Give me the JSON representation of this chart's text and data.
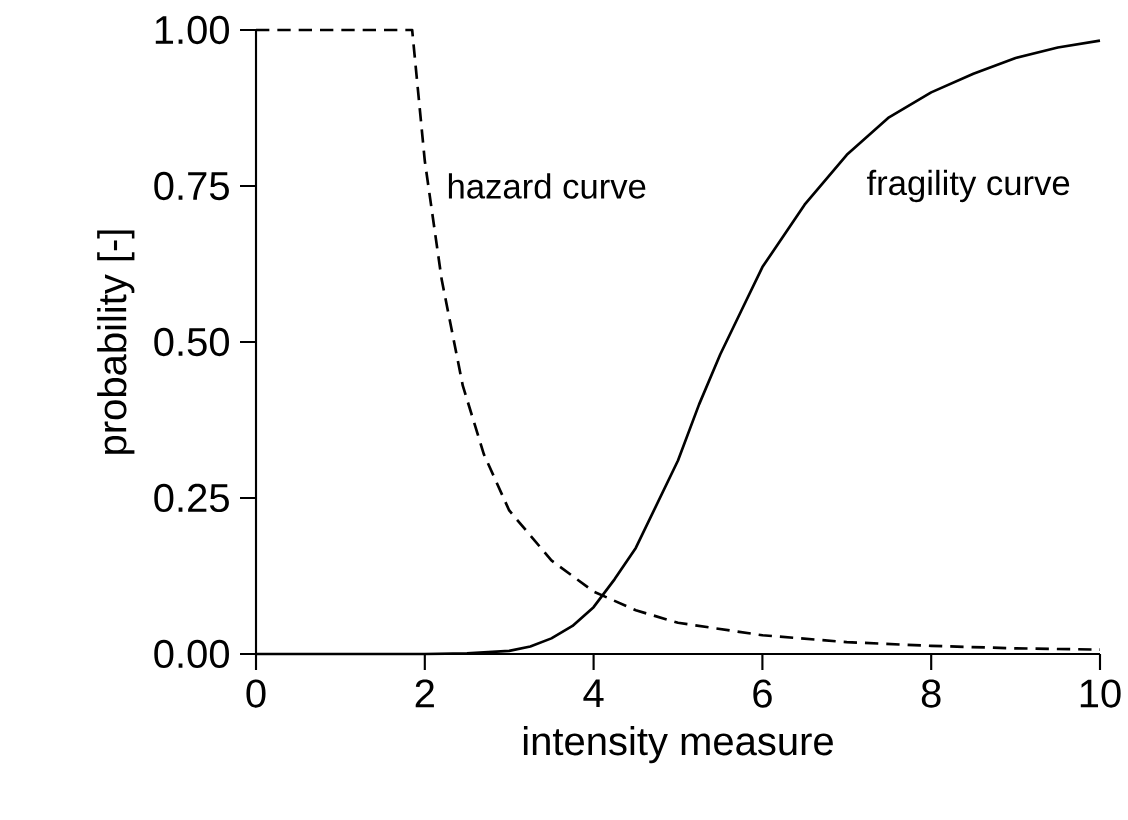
{
  "chart_data": {
    "type": "line",
    "xlabel": "intensity measure",
    "ylabel": "probability [-]",
    "xlim": [
      0,
      10
    ],
    "ylim": [
      0,
      1
    ],
    "xticks": [
      0,
      2,
      4,
      6,
      8,
      10
    ],
    "yticks": [
      {
        "value": 0,
        "label": "0.00"
      },
      {
        "value": 0.25,
        "label": "0.25"
      },
      {
        "value": 0.5,
        "label": "0.50"
      },
      {
        "value": 0.75,
        "label": "0.75"
      },
      {
        "value": 1,
        "label": "1.00"
      }
    ],
    "grid": false,
    "marker": "none",
    "series": [
      {
        "color": "#000000",
        "line_style": "dashed",
        "x": [
          0,
          1.85,
          2,
          2.2,
          2.45,
          2.7,
          3,
          3.5,
          4,
          4.5,
          5,
          6,
          7,
          8,
          9,
          10
        ],
        "values": [
          1,
          1,
          0.79,
          0.6,
          0.43,
          0.32,
          0.23,
          0.15,
          0.1,
          0.07,
          0.05,
          0.03,
          0.019,
          0.013,
          0.009,
          0.007
        ]
      },
      {
        "color": "#000000",
        "line_style": "solid",
        "x": [
          0,
          2,
          2.5,
          3,
          3.25,
          3.5,
          3.75,
          4,
          4.25,
          4.5,
          4.75,
          5,
          5.25,
          5.5,
          5.75,
          6,
          6.25,
          6.5,
          6.75,
          7,
          7.25,
          7.5,
          7.75,
          8,
          8.5,
          9,
          9.5,
          10
        ],
        "values": [
          0,
          0,
          0.001,
          0.005,
          0.012,
          0.025,
          0.045,
          0.075,
          0.12,
          0.17,
          0.24,
          0.31,
          0.4,
          0.48,
          0.55,
          0.62,
          0.67,
          0.72,
          0.76,
          0.8,
          0.83,
          0.86,
          0.88,
          0.9,
          0.93,
          0.955,
          0.972,
          0.983
        ]
      }
    ],
    "annotations": [
      "hazard curve",
      "fragility curve"
    ]
  }
}
